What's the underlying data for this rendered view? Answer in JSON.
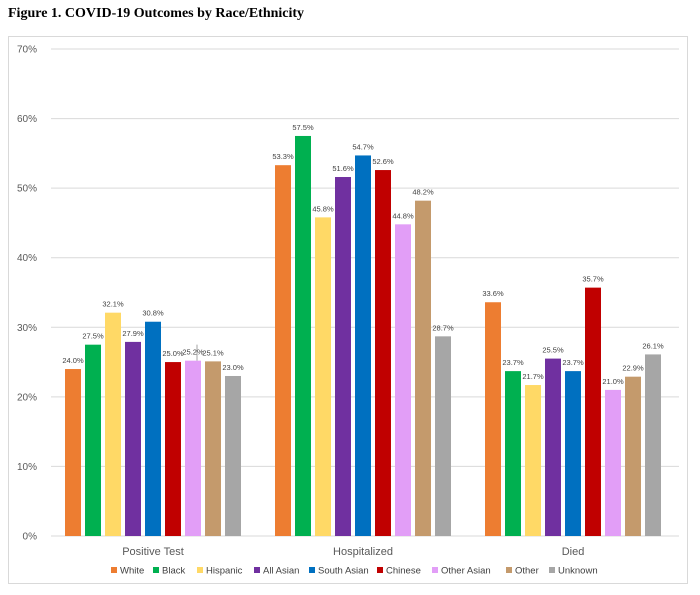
{
  "figure_title": "Figure 1. COVID-19 Outcomes by Race/Ethnicity",
  "chart_data": {
    "type": "bar",
    "title": "Figure 1. COVID-19 Outcomes by Race/Ethnicity",
    "categories": [
      "Positive Test",
      "Hospitalized",
      "Died"
    ],
    "series": [
      {
        "name": "White",
        "color": "#ED7D31",
        "values": [
          24.0,
          53.3,
          33.6
        ],
        "labels": [
          "24.0%",
          "53.3%",
          "33.6%"
        ]
      },
      {
        "name": "Black",
        "color": "#00B050",
        "values": [
          27.5,
          57.5,
          23.7
        ],
        "labels": [
          "27.5%",
          "57.5%",
          "23.7%"
        ]
      },
      {
        "name": "Hispanic",
        "color": "#FFD966",
        "values": [
          32.1,
          45.8,
          21.7
        ],
        "labels": [
          "32.1%",
          "45.8%",
          "21.7%"
        ]
      },
      {
        "name": "All Asian",
        "color": "#7030A0",
        "values": [
          27.9,
          51.6,
          25.5
        ],
        "labels": [
          "27.9%",
          "51.6%",
          "25.5%"
        ]
      },
      {
        "name": "South Asian",
        "color": "#0070C0",
        "values": [
          30.8,
          54.7,
          23.7
        ],
        "labels": [
          "30.8%",
          "54.7%",
          "23.7%"
        ]
      },
      {
        "name": "Chinese",
        "color": "#C00000",
        "values": [
          25.0,
          52.6,
          35.7
        ],
        "labels": [
          "25.0%",
          "52.6%",
          "35.7%"
        ]
      },
      {
        "name": "Other Asian",
        "color": "#E29EF7",
        "values": [
          25.2,
          44.8,
          21.0
        ],
        "labels": [
          "25.2%",
          "44.8%",
          "21.0%"
        ]
      },
      {
        "name": "Other",
        "color": "#C49A6C",
        "values": [
          25.1,
          48.2,
          22.9
        ],
        "labels": [
          "25.1%",
          "48.2%",
          "22.9%"
        ]
      },
      {
        "name": "Unknown",
        "color": "#A6A6A6",
        "values": [
          23.0,
          28.7,
          26.1
        ],
        "labels": [
          "23.0%",
          "28.7%",
          "26.1%"
        ]
      }
    ],
    "yticks": [
      "0%",
      "10%",
      "20%",
      "30%",
      "40%",
      "50%",
      "60%",
      "70%"
    ],
    "ylim": [
      0,
      70
    ],
    "xlabel": "",
    "ylabel": "",
    "grid": true,
    "legend_position": "bottom"
  }
}
